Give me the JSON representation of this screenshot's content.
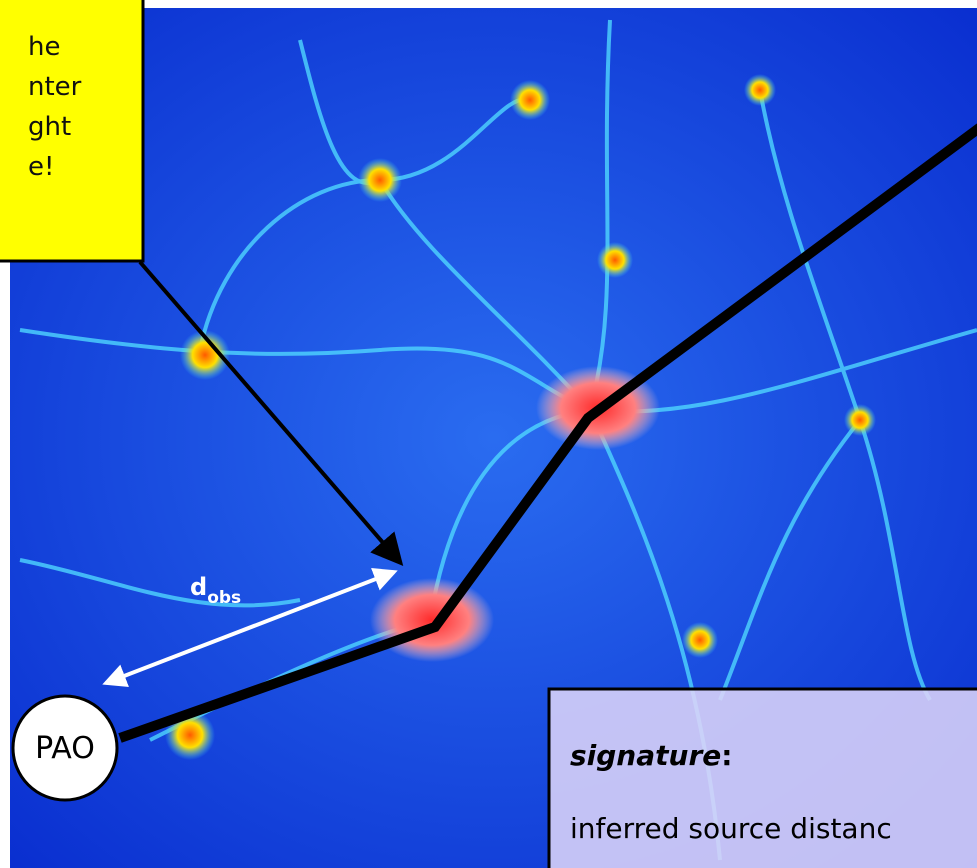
{
  "callout": {
    "lines": [
      "he",
      "nter",
      "ght",
      "e!"
    ]
  },
  "distance_label": {
    "main": "d",
    "subscript": "obs"
  },
  "observatory": {
    "label": "PAO"
  },
  "signature_box": {
    "title": "signature",
    "colon": ":",
    "text": "inferred source distanc"
  }
}
